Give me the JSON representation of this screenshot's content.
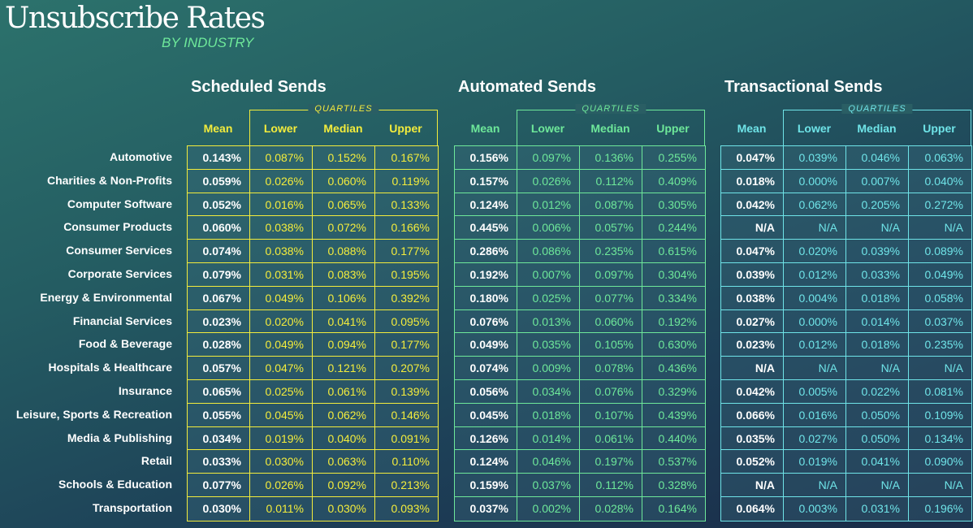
{
  "title": "Unsubscribe Rates",
  "subtitle": "BY INDUSTRY",
  "quartiles_label": "QUARTILES",
  "columns": [
    "Mean",
    "Lower",
    "Median",
    "Upper"
  ],
  "industries": [
    "Automotive",
    "Charities & Non-Profits",
    "Computer Software",
    "Consumer Products",
    "Consumer Services",
    "Corporate Services",
    "Energy & Environmental",
    "Financial Services",
    "Food & Beverage",
    "Hospitals & Healthcare",
    "Insurance",
    "Leisure, Sports & Recreation",
    "Media & Publishing",
    "Retail",
    "Schools & Education",
    "Transportation"
  ],
  "sections": [
    {
      "title": "Scheduled Sends",
      "color": "#f3ec3c",
      "rows": [
        [
          "0.143%",
          "0.087%",
          "0.152%",
          "0.167%"
        ],
        [
          "0.059%",
          "0.026%",
          "0.060%",
          "0.119%"
        ],
        [
          "0.052%",
          "0.016%",
          "0.065%",
          "0.133%"
        ],
        [
          "0.060%",
          "0.038%",
          "0.072%",
          "0.166%"
        ],
        [
          "0.074%",
          "0.038%",
          "0.088%",
          "0.177%"
        ],
        [
          "0.079%",
          "0.031%",
          "0.083%",
          "0.195%"
        ],
        [
          "0.067%",
          "0.049%",
          "0.106%",
          "0.392%"
        ],
        [
          "0.023%",
          "0.020%",
          "0.041%",
          "0.095%"
        ],
        [
          "0.028%",
          "0.049%",
          "0.094%",
          "0.177%"
        ],
        [
          "0.057%",
          "0.047%",
          "0.121%",
          "0.207%"
        ],
        [
          "0.065%",
          "0.025%",
          "0.061%",
          "0.139%"
        ],
        [
          "0.055%",
          "0.045%",
          "0.062%",
          "0.146%"
        ],
        [
          "0.034%",
          "0.019%",
          "0.040%",
          "0.091%"
        ],
        [
          "0.033%",
          "0.030%",
          "0.063%",
          "0.110%"
        ],
        [
          "0.077%",
          "0.026%",
          "0.092%",
          "0.213%"
        ],
        [
          "0.030%",
          "0.011%",
          "0.030%",
          "0.093%"
        ]
      ]
    },
    {
      "title": "Automated Sends",
      "color": "#6ee89a",
      "rows": [
        [
          "0.156%",
          "0.097%",
          "0.136%",
          "0.255%"
        ],
        [
          "0.157%",
          "0.026%",
          "0.112%",
          "0.409%"
        ],
        [
          "0.124%",
          "0.012%",
          "0.087%",
          "0.305%"
        ],
        [
          "0.445%",
          "0.006%",
          "0.057%",
          "0.244%"
        ],
        [
          "0.286%",
          "0.086%",
          "0.235%",
          "0.615%"
        ],
        [
          "0.192%",
          "0.007%",
          "0.097%",
          "0.304%"
        ],
        [
          "0.180%",
          "0.025%",
          "0.077%",
          "0.334%"
        ],
        [
          "0.076%",
          "0.013%",
          "0.060%",
          "0.192%"
        ],
        [
          "0.049%",
          "0.035%",
          "0.105%",
          "0.630%"
        ],
        [
          "0.074%",
          "0.009%",
          "0.078%",
          "0.436%"
        ],
        [
          "0.056%",
          "0.034%",
          "0.076%",
          "0.329%"
        ],
        [
          "0.045%",
          "0.018%",
          "0.107%",
          "0.439%"
        ],
        [
          "0.126%",
          "0.014%",
          "0.061%",
          "0.440%"
        ],
        [
          "0.124%",
          "0.046%",
          "0.197%",
          "0.537%"
        ],
        [
          "0.159%",
          "0.037%",
          "0.112%",
          "0.328%"
        ],
        [
          "0.037%",
          "0.002%",
          "0.028%",
          "0.164%"
        ]
      ]
    },
    {
      "title": "Transactional Sends",
      "color": "#6fe4e8",
      "rows": [
        [
          "0.047%",
          "0.039%",
          "0.046%",
          "0.063%"
        ],
        [
          "0.018%",
          "0.000%",
          "0.007%",
          "0.040%"
        ],
        [
          "0.042%",
          "0.062%",
          "0.205%",
          "0.272%"
        ],
        [
          "N/A",
          "N/A",
          "N/A",
          "N/A"
        ],
        [
          "0.047%",
          "0.020%",
          "0.039%",
          "0.089%"
        ],
        [
          "0.039%",
          "0.012%",
          "0.033%",
          "0.049%"
        ],
        [
          "0.038%",
          "0.004%",
          "0.018%",
          "0.058%"
        ],
        [
          "0.027%",
          "0.000%",
          "0.014%",
          "0.037%"
        ],
        [
          "0.023%",
          "0.012%",
          "0.018%",
          "0.235%"
        ],
        [
          "N/A",
          "N/A",
          "N/A",
          "N/A"
        ],
        [
          "0.042%",
          "0.005%",
          "0.022%",
          "0.081%"
        ],
        [
          "0.066%",
          "0.016%",
          "0.050%",
          "0.109%"
        ],
        [
          "0.035%",
          "0.027%",
          "0.050%",
          "0.134%"
        ],
        [
          "0.052%",
          "0.019%",
          "0.041%",
          "0.090%"
        ],
        [
          "N/A",
          "N/A",
          "N/A",
          "N/A"
        ],
        [
          "0.064%",
          "0.003%",
          "0.031%",
          "0.196%"
        ]
      ]
    }
  ]
}
